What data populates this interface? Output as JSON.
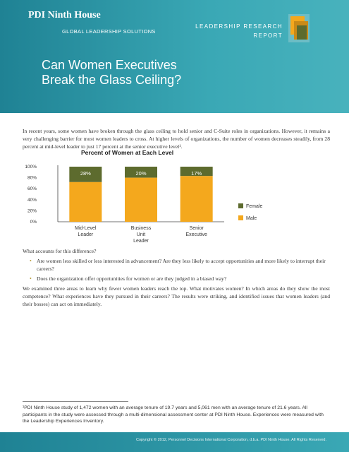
{
  "header": {
    "brand_name": "PDI Ninth House",
    "brand_sub": "GLOBAL LEADERSHIP SOLUTIONS",
    "report_line1": "LEADERSHIP RESEARCH",
    "report_line2": "REPORT",
    "title_line1": "Can Women Executives",
    "title_line2": "Break the Glass Ceiling?",
    "background_color": "#2a97a6"
  },
  "intro": {
    "text": "In recent years, some women have broken through the glass ceiling to hold senior and C-Suite roles in organizations. However, it remains a very challenging barrier for most women leaders to cross. At higher levels of organizations, the number of women decreases steadily, from 28 percent at mid-level leader to just 17 percent at the senior executive level¹."
  },
  "chart_data": {
    "type": "bar",
    "stacked": true,
    "title": "Percent of Women at Each Level",
    "categories": [
      "Mid-Level Leader",
      "Business Unit Leader",
      "Senior Executive"
    ],
    "category_lines": [
      [
        "Mid-Level",
        "Leader"
      ],
      [
        "Business",
        "Unit",
        "Leader"
      ],
      [
        "Senior",
        "Executive"
      ]
    ],
    "series": [
      {
        "name": "Female",
        "values": [
          28,
          20,
          17
        ],
        "labels": [
          "28%",
          "20%",
          "17%"
        ],
        "color": "#5d6b2e"
      },
      {
        "name": "Male",
        "values": [
          72,
          80,
          83
        ],
        "color": "#f4a81d"
      }
    ],
    "yticks": [
      "100%",
      "80%",
      "60%",
      "40%",
      "20%",
      "0%"
    ],
    "ylim": [
      0,
      100
    ],
    "legend_position": "right"
  },
  "body": {
    "question": "What accounts for this difference?",
    "bullets": [
      "Are women less skilled or less interested in advancement? Are they less likely to accept opportunities and more likely to interrupt their careers?",
      "Does the organization offer opportunities for women or are they judged in a biased way?"
    ],
    "closing": "We examined three areas to learn why fewer women leaders reach the top. What motivates women? In which areas do they show the most competence? What experiences have they pursued in their careers? The results were striking, and identified issues that women leaders (and their bosses) can act on immediately."
  },
  "footnote": "¹PDI Ninth House study of 1,472 women with an average tenure of 19.7 years and 5,061 men with an average tenure of 21.6 years. All participants in the study were assessed through a multi-dimensional assessment center at PDI Ninth House. Experiences were measured with the Leadership Experiences Inventory.",
  "footer": {
    "copyright": "Copyright © 2012, Personnel Decisions International Corporation, d.b.a. PDI Ninth House. All Rights Reserved."
  }
}
